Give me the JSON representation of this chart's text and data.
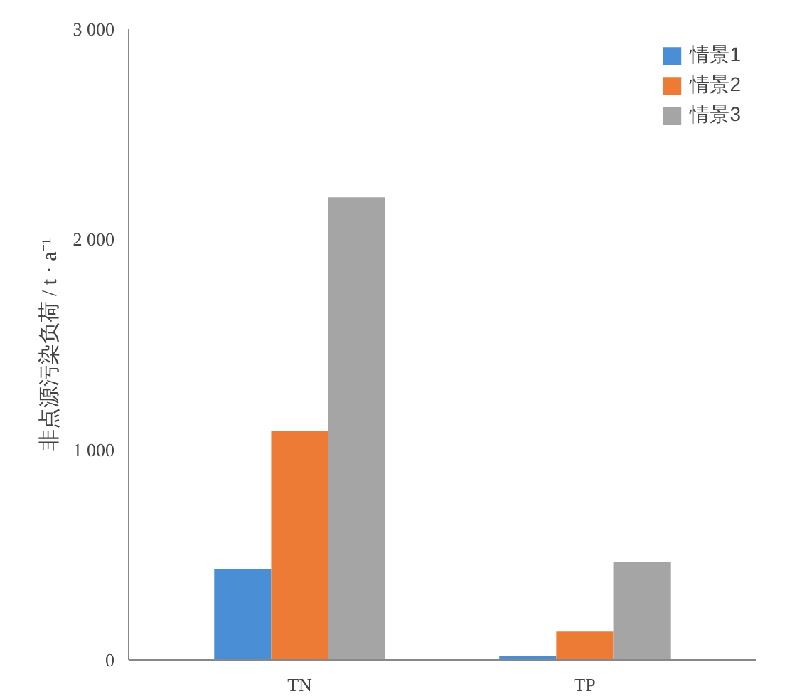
{
  "chart_data": {
    "type": "bar",
    "ylabel": "非点源污染负荷 / t · a⁻¹",
    "categories": [
      "TN",
      "TP"
    ],
    "series": [
      {
        "name": "情景1",
        "color": "#4a8fd6",
        "values": [
          430,
          20
        ]
      },
      {
        "name": "情景2",
        "color": "#ee7b35",
        "values": [
          1090,
          135
        ]
      },
      {
        "name": "情景3",
        "color": "#a5a5a5",
        "values": [
          2200,
          465
        ]
      }
    ],
    "ylim": [
      0,
      3000
    ],
    "yticks": [
      {
        "value": 0,
        "label": "0"
      },
      {
        "value": 1000,
        "label": "1 000"
      },
      {
        "value": 2000,
        "label": "2 000"
      },
      {
        "value": 3000,
        "label": "3 000"
      }
    ],
    "grid": false,
    "legend": "top right"
  }
}
